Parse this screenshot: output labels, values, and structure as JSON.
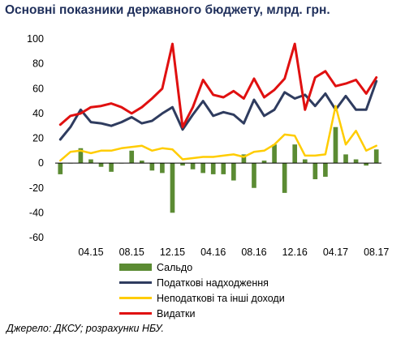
{
  "title": "Основні показники державного бюджету, млрд. грн.",
  "source": "Джерело: ДКСУ; розрахунки НБУ.",
  "colors": {
    "saldo": "#5b8b33",
    "tax": "#2f3c5f",
    "nontax": "#ffcc00",
    "expenditure": "#e01010",
    "zero_line": "#000000",
    "axis_text": "#000000",
    "title": "#1f2f5b"
  },
  "chart_data": {
    "type": "bar+line",
    "title": "Основні показники державного бюджету, млрд. грн.",
    "xlabel": "",
    "ylabel": "",
    "ylim": [
      -60,
      100
    ],
    "yticks": [
      100,
      80,
      60,
      40,
      20,
      0,
      -20,
      -40,
      -60
    ],
    "x_tick_labels": [
      "04.15",
      "08.15",
      "12.15",
      "04.16",
      "08.16",
      "12.16",
      "04.17",
      "08.17"
    ],
    "x_tick_index": [
      3,
      7,
      11,
      15,
      19,
      23,
      27,
      31
    ],
    "n_periods": 32,
    "grid": false,
    "legend_position": "bottom",
    "series": [
      {
        "name": "Сальдо",
        "type": "bar",
        "color": "#5b8b33",
        "values": [
          -9,
          0,
          12,
          3,
          -3,
          -7,
          0,
          10,
          2,
          -6,
          -8,
          -40,
          -2,
          -5,
          -8,
          -9,
          -9,
          -14,
          7,
          -20,
          2,
          15,
          -24,
          15,
          3,
          -13,
          -11,
          29,
          7,
          3,
          -2,
          11
        ]
      },
      {
        "name": "Податкові надходження",
        "type": "line",
        "color": "#2f3c5f",
        "values": [
          19,
          29,
          43,
          33,
          32,
          30,
          33,
          37,
          32,
          34,
          40,
          45,
          27,
          39,
          50,
          38,
          41,
          39,
          32,
          51,
          38,
          43,
          57,
          52,
          55,
          46,
          56,
          43,
          54,
          43,
          43,
          66
        ]
      },
      {
        "name": "Неподаткові та інші доходи",
        "type": "line",
        "color": "#ffcc00",
        "values": [
          2,
          9,
          10,
          8,
          10,
          10,
          12,
          13,
          14,
          10,
          12,
          11,
          3,
          4,
          5,
          5,
          6,
          7,
          5,
          9,
          10,
          15,
          23,
          22,
          6,
          6,
          7,
          46,
          15,
          26,
          10,
          14
        ]
      },
      {
        "name": "Видатки",
        "type": "line",
        "color": "#e01010",
        "values": [
          31,
          38,
          40,
          45,
          46,
          48,
          45,
          40,
          45,
          52,
          60,
          96,
          29,
          45,
          67,
          55,
          53,
          58,
          52,
          68,
          53,
          59,
          68,
          96,
          43,
          69,
          74,
          62,
          64,
          67,
          56,
          69
        ]
      }
    ]
  }
}
